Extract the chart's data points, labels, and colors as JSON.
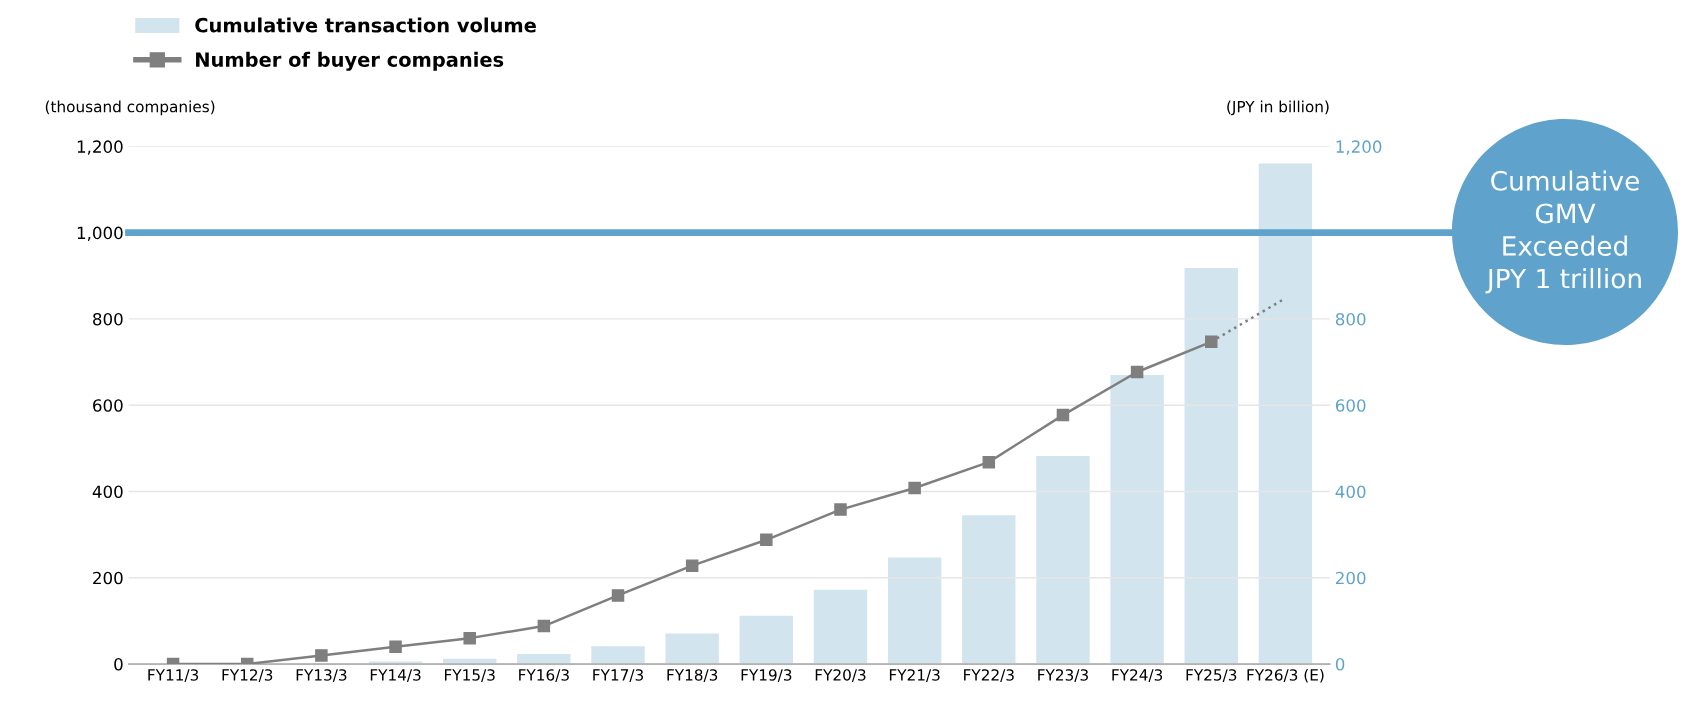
{
  "chart_data": {
    "type": "bar",
    "categories": [
      "FY11/3",
      "FY12/3",
      "FY13/3",
      "FY14/3",
      "FY15/3",
      "FY16/3",
      "FY17/3",
      "FY18/3",
      "FY19/3",
      "FY20/3",
      "FY21/3",
      "FY22/3",
      "FY23/3",
      "FY24/3",
      "FY25/3",
      "FY26/3 (E)"
    ],
    "series": [
      {
        "name": "Cumulative transaction volume",
        "axis": "y2",
        "color": "#d2e4ee",
        "values": [
          0,
          0,
          1,
          6,
          12,
          23,
          41,
          71,
          112,
          172,
          247,
          345,
          482,
          670,
          918,
          1160
        ]
      },
      {
        "name": "Number of buyer companies",
        "type": "line",
        "color": "#7f7f7f",
        "marker": "square",
        "line_style": "solid",
        "values": [
          0,
          0,
          20,
          40,
          60,
          88,
          159,
          228,
          288,
          358,
          408,
          468,
          577,
          677,
          747,
          null
        ]
      },
      {
        "type": "line",
        "color": "#7f7f7f",
        "line_style": "dotted",
        "values": [
          null,
          null,
          null,
          null,
          null,
          null,
          null,
          null,
          null,
          null,
          null,
          null,
          null,
          null,
          747,
          848
        ]
      }
    ],
    "ylabel": "(thousand companies)",
    "y2label": "(JPY in billion)",
    "ylim": [
      0,
      1200
    ],
    "yticks": [
      0,
      200,
      400,
      600,
      800,
      {
        "value": 1000,
        "label": "1,000"
      },
      {
        "value": 1200,
        "label": "1,200"
      }
    ],
    "y2lim": [
      0,
      1200
    ],
    "y2ticks": [
      0,
      200,
      400,
      600,
      800,
      {
        "value": 1200,
        "label": "1,200"
      }
    ],
    "ref_lines": [
      {
        "axis": "y",
        "value": 1000,
        "color": "#5fa3cc",
        "line_style": "solid"
      }
    ],
    "annotations": [
      "Cumulative\nGMV\nExceeded\nJPY 1 trillion"
    ],
    "grid": "y",
    "legend": "top left"
  }
}
